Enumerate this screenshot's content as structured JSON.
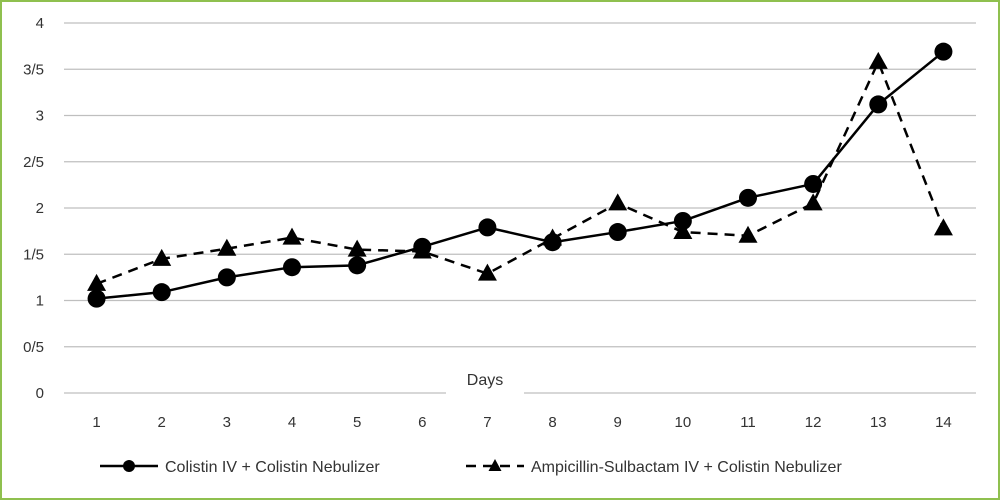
{
  "chart_data": {
    "type": "line",
    "xlabel": "Days",
    "ylabel": "",
    "categories": [
      "1",
      "2",
      "3",
      "4",
      "5",
      "6",
      "7",
      "8",
      "9",
      "10",
      "11",
      "12",
      "13",
      "14"
    ],
    "ylim": [
      0,
      4
    ],
    "y_ticks": [
      0,
      0.5,
      1,
      1.5,
      2,
      2.5,
      3,
      3.5,
      4
    ],
    "y_tick_labels": [
      "0",
      "0/5",
      "1",
      "1/5",
      "2",
      "2/5",
      "3",
      "3/5",
      "4"
    ],
    "grid": true,
    "legend_position": "bottom",
    "series": [
      {
        "name": "Colistin IV + Colistin Nebulizer",
        "values": [
          1.02,
          1.09,
          1.25,
          1.36,
          1.38,
          1.58,
          1.79,
          1.63,
          1.74,
          1.86,
          2.11,
          2.26,
          3.12,
          3.69
        ],
        "line_style": "solid",
        "marker": "circle",
        "color": "#000000"
      },
      {
        "name": "Ampicillin-Sulbactam IV + Colistin Nebulizer",
        "values": [
          1.18,
          1.45,
          1.56,
          1.68,
          1.55,
          1.53,
          1.29,
          1.67,
          2.05,
          1.74,
          1.7,
          2.05,
          3.58,
          1.78
        ],
        "line_style": "dashed",
        "marker": "triangle",
        "color": "#000000"
      }
    ]
  },
  "colors": {
    "frame_border": "#8fc04f",
    "gridline": "#bfbfbf",
    "text": "#333333"
  }
}
